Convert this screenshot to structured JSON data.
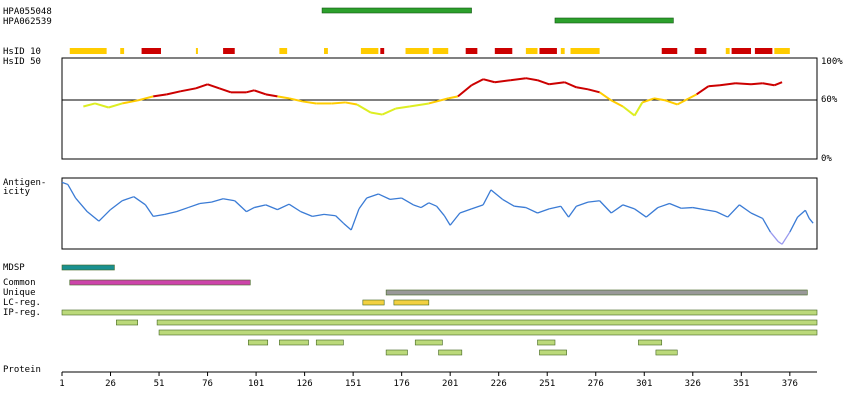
{
  "antibodies": [
    {
      "name": "HPA055048",
      "start": 135,
      "end": 212,
      "color": "#2ca02c"
    },
    {
      "name": "HPA062539",
      "start": 255,
      "end": 316,
      "color": "#2ca02c"
    }
  ],
  "labels": {
    "hsid10": "HsID 10",
    "hsid50": "HsID 50",
    "antigenicity_line1": "Antigen-",
    "antigenicity_line2": "icity",
    "mdsp": "MDSP",
    "common": "Common",
    "unique": "Unique",
    "lcreg": "LC-reg.",
    "ipreg": "IP-reg.",
    "protein": "Protein"
  },
  "identity_axis": {
    "top": "100%",
    "mid": "60%",
    "bottom": "0%"
  },
  "colors": {
    "high": "#cc0000",
    "mid": "#ffcc00",
    "low": "#ddee22",
    "antigen": "#3a7bd5",
    "antigen_low": "#9999ee",
    "mdsp": "#1a9090",
    "common": "#cc44aa",
    "unique": "#999999",
    "lcreg": "#f2d040",
    "ipreg": "#bbd97a",
    "segment_border": "#446622"
  },
  "chart_data": {
    "type": "track",
    "protein_length": 390,
    "x_ticks": [
      1,
      26,
      51,
      76,
      101,
      126,
      151,
      176,
      201,
      226,
      251,
      276,
      301,
      326,
      351,
      376
    ],
    "hsid10_blocks": [
      {
        "start": 5,
        "end": 24,
        "level": "mid"
      },
      {
        "start": 31,
        "end": 33,
        "level": "mid"
      },
      {
        "start": 42,
        "end": 52,
        "level": "high"
      },
      {
        "start": 70,
        "end": 71,
        "level": "mid"
      },
      {
        "start": 84,
        "end": 90,
        "level": "high"
      },
      {
        "start": 113,
        "end": 117,
        "level": "mid"
      },
      {
        "start": 136,
        "end": 138,
        "level": "mid"
      },
      {
        "start": 155,
        "end": 164,
        "level": "mid"
      },
      {
        "start": 165,
        "end": 167,
        "level": "high"
      },
      {
        "start": 178,
        "end": 190,
        "level": "mid"
      },
      {
        "start": 192,
        "end": 200,
        "level": "mid"
      },
      {
        "start": 209,
        "end": 215,
        "level": "high"
      },
      {
        "start": 224,
        "end": 233,
        "level": "high"
      },
      {
        "start": 240,
        "end": 246,
        "level": "mid"
      },
      {
        "start": 247,
        "end": 256,
        "level": "high"
      },
      {
        "start": 258,
        "end": 260,
        "level": "mid"
      },
      {
        "start": 263,
        "end": 278,
        "level": "mid"
      },
      {
        "start": 310,
        "end": 318,
        "level": "high"
      },
      {
        "start": 327,
        "end": 333,
        "level": "high"
      },
      {
        "start": 343,
        "end": 345,
        "level": "mid"
      },
      {
        "start": 346,
        "end": 356,
        "level": "high"
      },
      {
        "start": 358,
        "end": 367,
        "level": "high"
      },
      {
        "start": 368,
        "end": 376,
        "level": "mid"
      }
    ],
    "identity": {
      "ylim": [
        0,
        100
      ],
      "threshold": 60,
      "points": [
        [
          12,
          52
        ],
        [
          18,
          55
        ],
        [
          25,
          51
        ],
        [
          32,
          55
        ],
        [
          40,
          58
        ],
        [
          48,
          62
        ],
        [
          55,
          64
        ],
        [
          62,
          67
        ],
        [
          70,
          70
        ],
        [
          76,
          74
        ],
        [
          82,
          70
        ],
        [
          88,
          66
        ],
        [
          96,
          66
        ],
        [
          100,
          68
        ],
        [
          106,
          64
        ],
        [
          112,
          62
        ],
        [
          118,
          60
        ],
        [
          125,
          57
        ],
        [
          132,
          55
        ],
        [
          140,
          55
        ],
        [
          147,
          56
        ],
        [
          153,
          54
        ],
        [
          160,
          46
        ],
        [
          166,
          44
        ],
        [
          173,
          50
        ],
        [
          180,
          52
        ],
        [
          190,
          55
        ],
        [
          200,
          60
        ],
        [
          205,
          62
        ],
        [
          212,
          73
        ],
        [
          218,
          79
        ],
        [
          224,
          76
        ],
        [
          232,
          78
        ],
        [
          240,
          80
        ],
        [
          246,
          78
        ],
        [
          252,
          74
        ],
        [
          260,
          76
        ],
        [
          266,
          71
        ],
        [
          272,
          69
        ],
        [
          278,
          66
        ],
        [
          284,
          58
        ],
        [
          290,
          52
        ],
        [
          296,
          43
        ],
        [
          300,
          56
        ],
        [
          306,
          60
        ],
        [
          312,
          58
        ],
        [
          318,
          54
        ],
        [
          324,
          60
        ],
        [
          328,
          64
        ],
        [
          334,
          72
        ],
        [
          340,
          73
        ],
        [
          348,
          75
        ],
        [
          356,
          74
        ],
        [
          362,
          75
        ],
        [
          368,
          73
        ],
        [
          372,
          76
        ]
      ]
    },
    "antigenicity": {
      "points": [
        [
          1,
          0.95
        ],
        [
          4,
          0.92
        ],
        [
          8,
          0.72
        ],
        [
          14,
          0.52
        ],
        [
          20,
          0.38
        ],
        [
          26,
          0.55
        ],
        [
          32,
          0.68
        ],
        [
          38,
          0.74
        ],
        [
          44,
          0.62
        ],
        [
          48,
          0.45
        ],
        [
          54,
          0.48
        ],
        [
          60,
          0.52
        ],
        [
          66,
          0.58
        ],
        [
          72,
          0.64
        ],
        [
          78,
          0.66
        ],
        [
          84,
          0.71
        ],
        [
          90,
          0.68
        ],
        [
          96,
          0.52
        ],
        [
          100,
          0.58
        ],
        [
          106,
          0.62
        ],
        [
          112,
          0.55
        ],
        [
          118,
          0.63
        ],
        [
          124,
          0.52
        ],
        [
          130,
          0.45
        ],
        [
          136,
          0.48
        ],
        [
          142,
          0.46
        ],
        [
          146,
          0.35
        ],
        [
          150,
          0.25
        ],
        [
          154,
          0.56
        ],
        [
          158,
          0.72
        ],
        [
          164,
          0.78
        ],
        [
          170,
          0.7
        ],
        [
          176,
          0.72
        ],
        [
          182,
          0.62
        ],
        [
          186,
          0.58
        ],
        [
          190,
          0.65
        ],
        [
          194,
          0.6
        ],
        [
          198,
          0.46
        ],
        [
          201,
          0.32
        ],
        [
          206,
          0.5
        ],
        [
          212,
          0.56
        ],
        [
          218,
          0.62
        ],
        [
          222,
          0.84
        ],
        [
          228,
          0.7
        ],
        [
          234,
          0.6
        ],
        [
          240,
          0.58
        ],
        [
          246,
          0.5
        ],
        [
          252,
          0.56
        ],
        [
          258,
          0.6
        ],
        [
          262,
          0.44
        ],
        [
          266,
          0.6
        ],
        [
          272,
          0.66
        ],
        [
          278,
          0.68
        ],
        [
          284,
          0.5
        ],
        [
          290,
          0.62
        ],
        [
          296,
          0.56
        ],
        [
          302,
          0.44
        ],
        [
          308,
          0.58
        ],
        [
          314,
          0.64
        ],
        [
          320,
          0.57
        ],
        [
          326,
          0.58
        ],
        [
          332,
          0.55
        ],
        [
          338,
          0.52
        ],
        [
          344,
          0.44
        ],
        [
          350,
          0.62
        ],
        [
          356,
          0.5
        ],
        [
          362,
          0.42
        ],
        [
          366,
          0.22
        ],
        [
          370,
          0.08
        ],
        [
          372,
          0.04
        ],
        [
          376,
          0.22
        ],
        [
          380,
          0.44
        ],
        [
          384,
          0.54
        ],
        [
          386,
          0.42
        ],
        [
          388,
          0.35
        ]
      ]
    },
    "mdsp": [
      {
        "start": 1,
        "end": 28
      }
    ],
    "common": [
      {
        "start": 5,
        "end": 98
      }
    ],
    "unique": [
      {
        "start": 168,
        "end": 385
      }
    ],
    "lcreg": [
      {
        "start": 156,
        "end": 167
      },
      {
        "start": 172,
        "end": 190
      }
    ],
    "ipreg": [
      {
        "start": 1,
        "end": 390
      },
      {
        "start": 29,
        "end": 40
      },
      {
        "start": 50,
        "end": 390
      },
      {
        "start": 51,
        "end": 390
      },
      {
        "start": 97,
        "end": 107
      },
      {
        "start": 113,
        "end": 128
      },
      {
        "start": 132,
        "end": 146
      },
      {
        "start": 168,
        "end": 179
      },
      {
        "start": 183,
        "end": 197
      },
      {
        "start": 195,
        "end": 207
      },
      {
        "start": 246,
        "end": 255
      },
      {
        "start": 247,
        "end": 261
      },
      {
        "start": 298,
        "end": 310
      },
      {
        "start": 307,
        "end": 318
      }
    ]
  }
}
